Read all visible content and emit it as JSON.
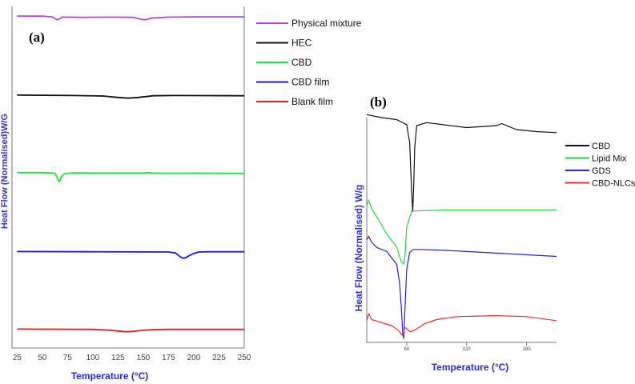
{
  "chart_data": [
    {
      "type": "line",
      "panel_label": "(a)",
      "xlabel": "Temperature (°C)",
      "ylabel": "Heat Flow (Normalised)W/G",
      "xlim": [
        20,
        250
      ],
      "xticks": [
        25,
        50,
        75,
        100,
        125,
        150,
        175,
        200,
        225,
        250
      ],
      "legend_position": "right",
      "series": [
        {
          "name": "Physical mixture",
          "color": "#b44ad8",
          "x": [
            25,
            50,
            60,
            65,
            70,
            90,
            120,
            140,
            148,
            152,
            158,
            175,
            200,
            250
          ],
          "y": [
            0.3,
            0.3,
            0.15,
            -0.5,
            0.1,
            0.05,
            0.1,
            0.05,
            -0.35,
            -0.45,
            -0.1,
            0.1,
            0.15,
            0.15
          ]
        },
        {
          "name": "HEC",
          "color": "#111111",
          "x": [
            25,
            80,
            110,
            125,
            135,
            145,
            160,
            180,
            250
          ],
          "y": [
            0.2,
            0.1,
            0,
            -0.3,
            -0.45,
            -0.3,
            0.05,
            0.1,
            0.05
          ]
        },
        {
          "name": "CBD",
          "color": "#22e040",
          "x": [
            25,
            50,
            62,
            64,
            66,
            67,
            69,
            72,
            80,
            150,
            155,
            160,
            250
          ],
          "y": [
            0.2,
            0.2,
            0.1,
            -0.5,
            -1.5,
            -1.6,
            -0.6,
            0,
            0.15,
            0.1,
            0.2,
            0.1,
            0.05
          ]
        },
        {
          "name": "CBD film",
          "color": "#1a1ae0",
          "x": [
            25,
            100,
            175,
            182,
            186,
            189,
            192,
            196,
            200,
            205,
            215,
            250
          ],
          "y": [
            0.1,
            0.05,
            0,
            -0.2,
            -0.9,
            -1.3,
            -1.2,
            -0.7,
            -0.3,
            0,
            0.05,
            0.05
          ]
        },
        {
          "name": "Blank film",
          "color": "#e02020",
          "x": [
            25,
            100,
            115,
            125,
            133,
            140,
            150,
            160,
            175,
            250
          ],
          "y": [
            0.1,
            0.05,
            -0.1,
            -0.3,
            -0.45,
            -0.35,
            -0.15,
            0,
            0.05,
            0.05
          ]
        }
      ]
    },
    {
      "type": "line",
      "panel_label": "(b)",
      "xlabel": "Temperature (°C)",
      "ylabel": "Heat Flow (Normalised) W/g",
      "xlim": [
        20,
        210
      ],
      "xticks": [
        60,
        120,
        180
      ],
      "legend_position": "right",
      "series": [
        {
          "name": "CBD",
          "color": "#111111",
          "x": [
            20,
            35,
            50,
            60,
            63,
            65,
            66,
            67,
            68,
            70,
            80,
            120,
            150,
            155,
            160,
            170,
            190,
            210
          ],
          "y": [
            2.3,
            2.0,
            1.8,
            1.3,
            -0.5,
            -5.5,
            -7.4,
            -5.0,
            -1.0,
            1.2,
            1.5,
            1.0,
            1.2,
            1.4,
            1.2,
            0.8,
            0.6,
            0.5
          ]
        },
        {
          "name": "Lipid Mix",
          "color": "#2bd04a",
          "x": [
            20,
            22,
            25,
            32,
            40,
            50,
            54,
            56,
            57,
            58,
            60,
            65,
            100,
            210
          ],
          "y": [
            0.6,
            1.2,
            0.3,
            -0.8,
            -2.2,
            -3.5,
            -4.8,
            -5.1,
            -5.2,
            -4.8,
            -1.5,
            0.1,
            0.2,
            0.2
          ]
        },
        {
          "name": "GDS",
          "color": "#2424d0",
          "x": [
            20,
            22,
            25,
            30,
            40,
            50,
            53,
            55,
            56,
            57,
            58,
            60,
            63,
            67,
            75,
            100,
            210
          ],
          "y": [
            1.5,
            1.8,
            1.2,
            0.7,
            0.3,
            -1.0,
            -3.0,
            -6.0,
            -8.0,
            -8.4,
            -6.0,
            -1.5,
            0.2,
            0.5,
            0.5,
            0.4,
            -0.2
          ]
        },
        {
          "name": "CBD-NLCs",
          "color": "#e83030",
          "x": [
            20,
            22,
            25,
            35,
            45,
            52,
            55,
            57,
            58,
            60,
            63,
            67,
            72,
            78,
            90,
            110,
            150,
            180,
            210
          ],
          "y": [
            0.5,
            1.2,
            0.6,
            0.3,
            0.0,
            -0.5,
            -0.9,
            -0.7,
            -0.2,
            -0.3,
            -0.6,
            -0.5,
            -0.2,
            0.2,
            0.6,
            0.9,
            1.0,
            0.9,
            0.5
          ]
        }
      ]
    }
  ]
}
